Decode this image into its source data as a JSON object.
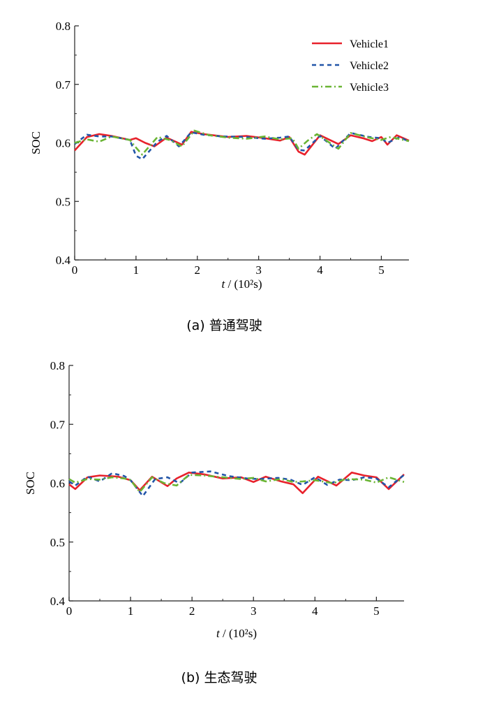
{
  "chart_data": [
    {
      "type": "line",
      "caption": "(a) 普通驾驶",
      "ylabel": "SOC",
      "xlabel_italic": "t",
      "xlabel_unit": " / (10²s)",
      "xlim": [
        0,
        5.45
      ],
      "ylim": [
        0.4,
        0.8
      ],
      "xticks": [
        0,
        1,
        2,
        3,
        4,
        5
      ],
      "yticks": [
        0.4,
        0.5,
        0.6,
        0.7,
        0.8
      ],
      "legend": "top-right",
      "series": [
        {
          "name": "Vehicle1",
          "color": "#e8212b",
          "dash": "solid",
          "x": [
            0,
            0.2,
            0.4,
            0.6,
            0.9,
            1.0,
            1.15,
            1.3,
            1.5,
            1.75,
            1.9,
            2.1,
            2.5,
            2.8,
            3.1,
            3.35,
            3.5,
            3.65,
            3.75,
            4.0,
            4.3,
            4.5,
            4.7,
            4.85,
            5.0,
            5.1,
            5.25,
            5.45
          ],
          "y": [
            0.587,
            0.61,
            0.615,
            0.612,
            0.605,
            0.608,
            0.6,
            0.594,
            0.609,
            0.597,
            0.619,
            0.615,
            0.61,
            0.612,
            0.608,
            0.604,
            0.61,
            0.585,
            0.58,
            0.613,
            0.598,
            0.613,
            0.608,
            0.603,
            0.61,
            0.597,
            0.613,
            0.604
          ]
        },
        {
          "name": "Vehicle2",
          "color": "#2255a8",
          "dash": "6,5",
          "x": [
            0,
            0.2,
            0.4,
            0.6,
            0.9,
            1.0,
            1.1,
            1.35,
            1.5,
            1.7,
            1.9,
            2.1,
            2.4,
            2.8,
            3.1,
            3.35,
            3.5,
            3.65,
            3.75,
            4.0,
            4.25,
            4.5,
            4.8,
            5.0,
            5.1,
            5.3,
            5.45
          ],
          "y": [
            0.598,
            0.614,
            0.611,
            0.611,
            0.605,
            0.578,
            0.572,
            0.602,
            0.612,
            0.594,
            0.618,
            0.614,
            0.611,
            0.61,
            0.607,
            0.609,
            0.611,
            0.588,
            0.587,
            0.612,
            0.59,
            0.617,
            0.61,
            0.608,
            0.6,
            0.61,
            0.602
          ]
        },
        {
          "name": "Vehicle3",
          "color": "#6ab534",
          "dash": "9,4,2,4",
          "x": [
            0,
            0.2,
            0.4,
            0.6,
            0.9,
            1.0,
            1.1,
            1.35,
            1.55,
            1.75,
            1.95,
            2.2,
            2.5,
            2.8,
            3.1,
            3.35,
            3.55,
            3.65,
            3.8,
            3.95,
            4.3,
            4.5,
            4.8,
            5.0,
            5.15,
            5.45
          ],
          "y": [
            0.6,
            0.606,
            0.602,
            0.611,
            0.605,
            0.592,
            0.58,
            0.61,
            0.605,
            0.594,
            0.621,
            0.613,
            0.609,
            0.607,
            0.611,
            0.606,
            0.608,
            0.59,
            0.604,
            0.615,
            0.59,
            0.617,
            0.609,
            0.605,
            0.61,
            0.603
          ]
        }
      ]
    },
    {
      "type": "line",
      "caption": "(b) 生态驾驶",
      "ylabel": "SOC",
      "xlabel_italic": "t",
      "xlabel_unit": " / (10²s)",
      "xlim": [
        0,
        5.45
      ],
      "ylim": [
        0.4,
        0.8
      ],
      "xticks": [
        0,
        1,
        2,
        3,
        4,
        5
      ],
      "yticks": [
        0.4,
        0.5,
        0.6,
        0.7,
        0.8
      ],
      "series": [
        {
          "name": "Vehicle1",
          "color": "#e8212b",
          "dash": "solid",
          "x": [
            0,
            0.1,
            0.3,
            0.5,
            0.8,
            1.0,
            1.15,
            1.35,
            1.6,
            1.75,
            1.95,
            2.2,
            2.5,
            2.8,
            3.0,
            3.2,
            3.45,
            3.65,
            3.8,
            4.05,
            4.35,
            4.6,
            4.8,
            5.0,
            5.2,
            5.45
          ],
          "y": [
            0.598,
            0.59,
            0.61,
            0.613,
            0.611,
            0.605,
            0.588,
            0.611,
            0.595,
            0.608,
            0.618,
            0.615,
            0.608,
            0.61,
            0.602,
            0.611,
            0.603,
            0.598,
            0.583,
            0.611,
            0.596,
            0.618,
            0.613,
            0.61,
            0.59,
            0.615
          ]
        },
        {
          "name": "Vehicle2",
          "color": "#2255a8",
          "dash": "6,5",
          "x": [
            0,
            0.1,
            0.3,
            0.5,
            0.7,
            0.9,
            1.0,
            1.2,
            1.4,
            1.6,
            1.8,
            2.0,
            2.3,
            2.6,
            2.9,
            3.1,
            3.4,
            3.6,
            3.8,
            4.0,
            4.2,
            4.4,
            4.6,
            4.8,
            5.0,
            5.2,
            5.45
          ],
          "y": [
            0.603,
            0.596,
            0.611,
            0.603,
            0.617,
            0.612,
            0.605,
            0.578,
            0.607,
            0.61,
            0.6,
            0.618,
            0.62,
            0.612,
            0.608,
            0.607,
            0.609,
            0.606,
            0.597,
            0.61,
            0.597,
            0.606,
            0.605,
            0.61,
            0.608,
            0.593,
            0.614
          ]
        },
        {
          "name": "Vehicle3",
          "color": "#6ab534",
          "dash": "9,4,2,4",
          "x": [
            0,
            0.1,
            0.3,
            0.5,
            0.7,
            0.9,
            1.0,
            1.15,
            1.35,
            1.55,
            1.75,
            1.95,
            2.2,
            2.5,
            2.8,
            3.0,
            3.2,
            3.45,
            3.65,
            3.8,
            4.0,
            4.3,
            4.5,
            4.8,
            5.0,
            5.2,
            5.45
          ],
          "y": [
            0.607,
            0.601,
            0.607,
            0.606,
            0.61,
            0.608,
            0.605,
            0.585,
            0.61,
            0.6,
            0.596,
            0.614,
            0.613,
            0.61,
            0.607,
            0.609,
            0.603,
            0.607,
            0.602,
            0.603,
            0.605,
            0.6,
            0.607,
            0.606,
            0.601,
            0.61,
            0.602
          ]
        }
      ]
    }
  ]
}
